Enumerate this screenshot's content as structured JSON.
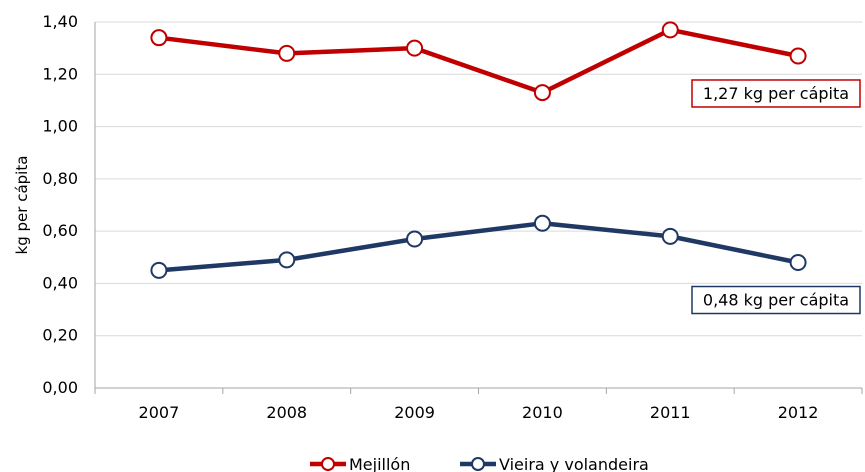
{
  "chart_data": {
    "type": "line",
    "title": "",
    "xlabel": "",
    "ylabel": "kg per cápita",
    "categories": [
      "2007",
      "2008",
      "2009",
      "2010",
      "2011",
      "2012"
    ],
    "ylim": [
      0,
      1.4
    ],
    "y_ticks": [
      "0,00",
      "0,20",
      "0,40",
      "0,60",
      "0,80",
      "1,00",
      "1,20",
      "1,40"
    ],
    "grid": true,
    "legend_position": "bottom",
    "series": [
      {
        "name": "Mejillón",
        "color": "#c00000",
        "values": [
          1.34,
          1.28,
          1.3,
          1.13,
          1.37,
          1.27
        ]
      },
      {
        "name": "Vieira y volandeira",
        "color": "#1f3864",
        "values": [
          0.45,
          0.49,
          0.57,
          0.63,
          0.58,
          0.48
        ]
      }
    ],
    "annotations": [
      {
        "series": "Mejillón",
        "text": "1,27 kg per cápita",
        "border_color": "#c00000"
      },
      {
        "series": "Vieira y volandeira",
        "text": "0,48 kg per cápita",
        "border_color": "#1f3864"
      }
    ]
  }
}
